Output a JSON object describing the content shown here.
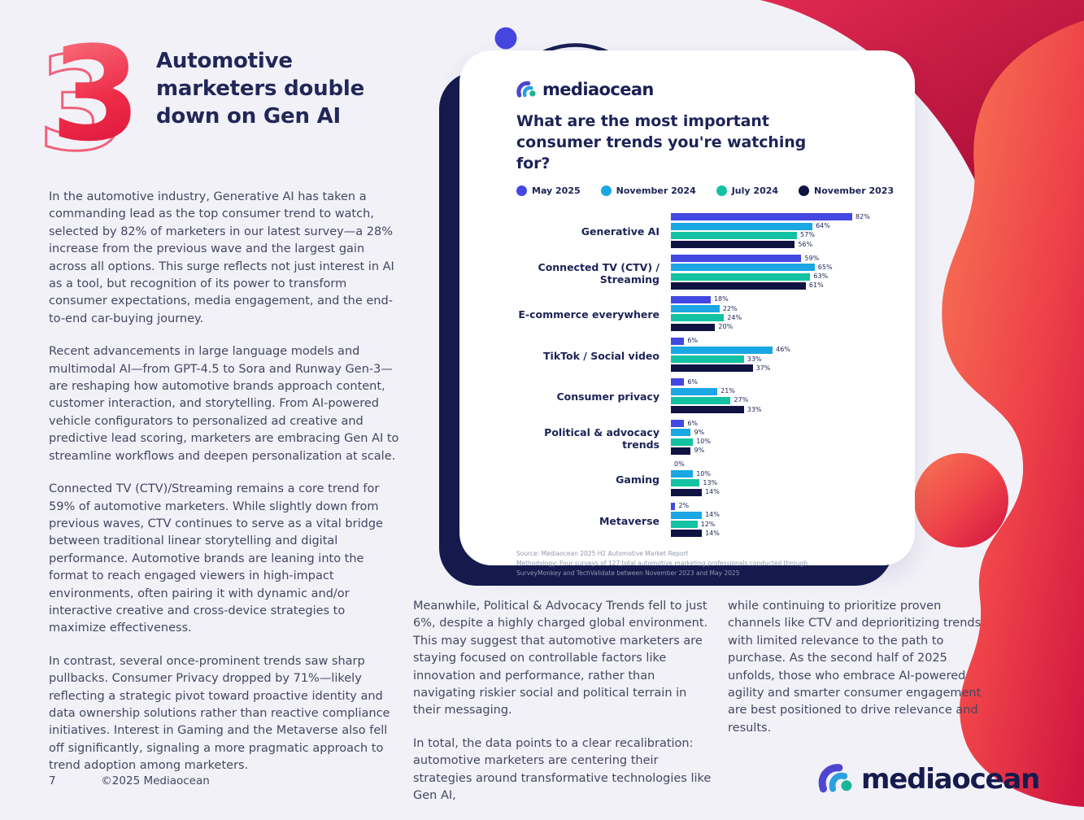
{
  "page": {
    "section_number": "3",
    "heading_lines": [
      "Automotive",
      "marketers double",
      "down on Gen AI"
    ],
    "page_number": "7",
    "copyright": "©2025 Mediaocean",
    "left_paragraphs": [
      "In the automotive industry, Generative AI has taken a commanding lead as the top consumer trend to watch, selected by 82% of marketers in our latest survey—a 28% increase from the previous wave and the largest gain across all options. This surge reflects not just interest in AI as a tool, but recognition of its power to transform consumer expectations, media engagement, and the end-to-end car-buying journey.",
      "Recent advancements in large language models and multimodal AI—from GPT-4.5 to Sora and Runway Gen-3—are reshaping how automotive brands approach content, customer interaction, and storytelling. From AI-powered vehicle configurators to personalized ad creative and predictive lead scoring, marketers are embracing Gen AI to streamline workflows and deepen personalization at scale.",
      "Connected TV (CTV)/Streaming remains a core trend for 59% of automotive marketers. While slightly down from previous waves, CTV continues to serve as a vital bridge between traditional linear storytelling and digital performance. Automotive brands are leaning into the format to reach engaged viewers in high-impact environments, often pairing it with dynamic and/or interactive creative and cross-device strategies to maximize effectiveness.",
      "In contrast, several once-prominent trends saw sharp pullbacks. Consumer Privacy dropped by 71%—likely reflecting a strategic pivot toward proactive identity and data ownership solutions rather than reactive compliance initiatives. Interest in Gaming and the Metaverse also fell off significantly, signaling a more pragmatic approach to trend adoption among marketers."
    ],
    "middle_paragraphs": [
      "Meanwhile, Political & Advocacy Trends fell to just 6%, despite a highly charged global environment. This may suggest that automotive marketers are staying focused on controllable factors like innovation and performance, rather than navigating riskier social and political terrain in their messaging.",
      "In total, the data points to a clear recalibration: automotive marketers are centering their strategies around transformative technologies like Gen AI,"
    ],
    "right_paragraphs": [
      "while continuing to prioritize proven channels like CTV and deprioritizing trends with limited relevance to the path to purchase. As the second half of 2025 unfolds, those who embrace AI-powered agility and smarter consumer engagement are best positioned to drive relevance and results."
    ]
  },
  "chart_card": {
    "logo_text": "mediaocean",
    "title": "What are the most important consumer trends you're watching for?",
    "source": "Source: Mediaocean 2025 H2 Automotive Market Report",
    "methodology": "Methodology: Four surveys of 127 total automotive marketing professionals conducted through SurveyMonkey and TechValidate between November 2023 and May 2025"
  },
  "footer_logo": {
    "text": "mediaocean"
  },
  "chart_data": {
    "type": "bar",
    "orientation": "horizontal",
    "title": "What are the most important consumer trends you're watching for?",
    "categories": [
      "Generative AI",
      "Connected TV (CTV) / Streaming",
      "E-commerce everywhere",
      "TikTok / Social video",
      "Consumer privacy",
      "Political & advocacy trends",
      "Gaming",
      "Metaverse"
    ],
    "series": [
      {
        "name": "May 2025",
        "color": "#4348e2",
        "values": [
          82,
          59,
          18,
          6,
          6,
          6,
          0,
          2
        ]
      },
      {
        "name": "November 2024",
        "color": "#1ba6e4",
        "values": [
          64,
          65,
          22,
          46,
          21,
          9,
          10,
          14
        ]
      },
      {
        "name": "July 2024",
        "color": "#13c2a2",
        "values": [
          57,
          63,
          24,
          33,
          27,
          10,
          13,
          12
        ]
      },
      {
        "name": "November 2023",
        "color": "#0e1342",
        "values": [
          56,
          61,
          20,
          37,
          33,
          9,
          14,
          14
        ]
      }
    ],
    "value_suffix": "%",
    "xlim": [
      0,
      100
    ],
    "grid": false,
    "legend_position": "top"
  },
  "colors": {
    "page_background": "#f2f1f8",
    "heading_navy": "#212757",
    "body_text": "#434860",
    "accent_red": "#e62547",
    "card_shadow_navy": "#161b4e",
    "blob_gradient_start": "#f4694e",
    "blob_gradient_end": "#cf1340"
  }
}
